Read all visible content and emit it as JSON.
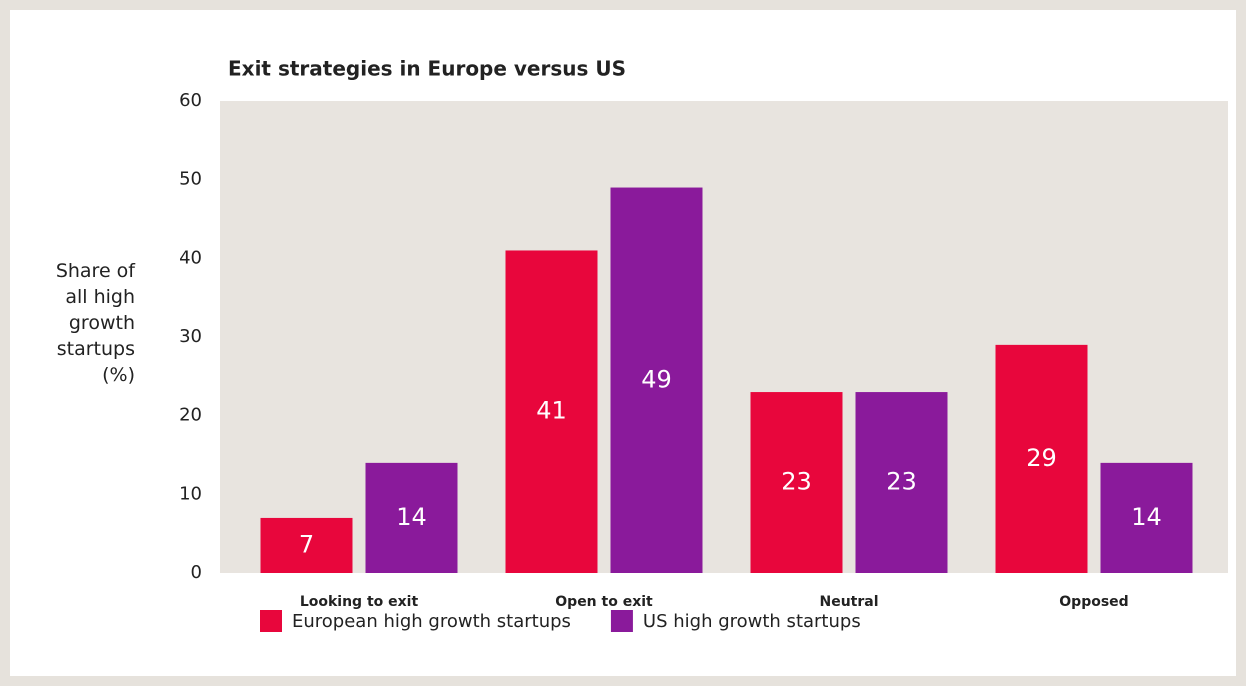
{
  "chart_data": {
    "type": "bar",
    "title": "Exit strategies in Europe versus US",
    "y_axis_label": "Share of all high growth startups (%)",
    "categories": [
      "Looking to exit",
      "Open to exit",
      "Neutral",
      "Opposed"
    ],
    "series": [
      {
        "name": "European high growth startups",
        "color": "#e8063c",
        "values": [
          7,
          41,
          23,
          29
        ]
      },
      {
        "name": "US high growth startups",
        "color": "#8a1a9b",
        "values": [
          14,
          49,
          23,
          14
        ]
      }
    ],
    "ylim": [
      0,
      60
    ],
    "yticks": [
      0,
      10,
      20,
      30,
      40,
      50,
      60
    ],
    "grid": false,
    "plot_background": "#e8e4df",
    "legend": "bottom"
  }
}
